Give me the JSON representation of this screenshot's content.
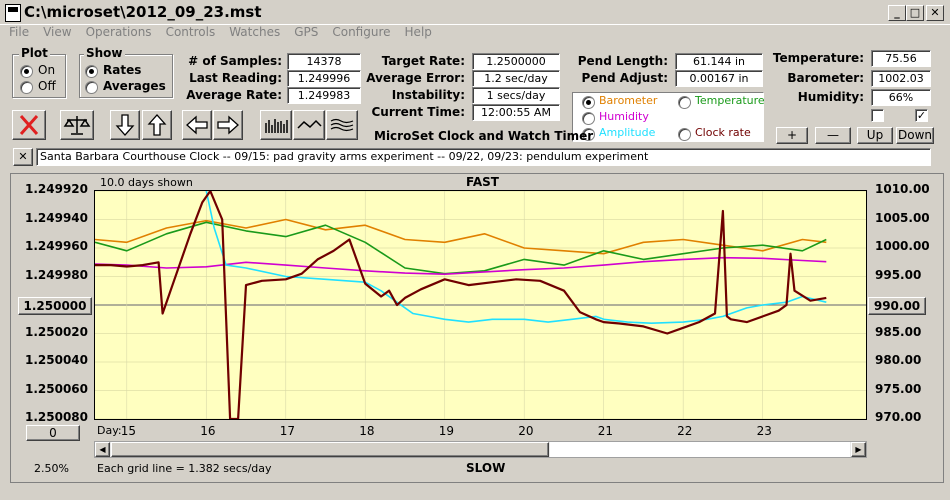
{
  "window": {
    "title": "C:\\microset\\2012_09_23.mst"
  },
  "menu": [
    "File",
    "View",
    "Operations",
    "Controls",
    "Watches",
    "GPS",
    "Configure",
    "Help"
  ],
  "plot_group": {
    "title": "Plot",
    "on": "On",
    "off": "Off",
    "selected": "On"
  },
  "show_group": {
    "title": "Show",
    "rates": "Rates",
    "averages": "Averages",
    "selected": "Rates"
  },
  "stats": {
    "samples_label": "# of Samples:",
    "samples": "14378",
    "last_label": "Last Reading:",
    "last": "1.249996",
    "avg_label": "Average Rate:",
    "avg": "1.249983",
    "target_label": "Target Rate:",
    "target": "1.2500000",
    "avgerr_label": "Average Error:",
    "avgerr": "1.2 sec/day",
    "instab_label": "Instability:",
    "instab": "1 secs/day",
    "time_label": "Current Time:",
    "time": "12:00:55 AM",
    "pendlen_label": "Pend Length:",
    "pendlen": "61.144 in",
    "pendadj_label": "Pend Adjust:",
    "pendadj": "0.00167 in",
    "temp_label": "Temperature:",
    "temp": "75.56",
    "baro_label": "Barometer:",
    "baro": "1002.03",
    "hum_label": "Humidity:",
    "hum": "66%"
  },
  "sensor_options": {
    "barometer": "Barometer",
    "temperature": "Temperature",
    "humidity": "Humidity",
    "amplitude": "Amplitude",
    "clockrate": "Clock rate",
    "selected": "Barometer"
  },
  "colors": {
    "barometer": "#e08000",
    "temperature": "#1a9a1a",
    "humidity": "#d000d0",
    "amplitude": "#20e0ff",
    "rate": "#700000"
  },
  "app_title": "MicroSet Clock and Watch Timer",
  "small_buttons": {
    "plus": "+",
    "minus": "—",
    "up": "Up",
    "down": "Down"
  },
  "close_x": "✕",
  "description": "Santa Barbara Courthouse Clock  --  09/15: pad gravity arms experiment  --  09/22, 09/23: pendulum experiment",
  "chart_header": {
    "days_shown": "10.0 days shown",
    "fast": "FAST",
    "slow": "SLOW",
    "day_label": "Day:",
    "grid_note": "Each grid line = 1.382 secs/day",
    "zoom": "2.50%"
  },
  "center_button": "1.250000",
  "right_center_button": "990.00",
  "left_bottom_button": "0",
  "chart_data": {
    "type": "line",
    "x_label": "Day:",
    "x_range": [
      14.6,
      24.3
    ],
    "x_ticks": [
      15,
      16,
      17,
      18,
      19,
      20,
      21,
      22,
      23
    ],
    "y_left_ticks": [
      "1.249920",
      "1.249940",
      "1.249960",
      "1.249980",
      "1.250000",
      "1.250020",
      "1.250040",
      "1.250060",
      "1.250080"
    ],
    "y_left_range": [
      1.24992,
      1.25008
    ],
    "y_left_inverted": true,
    "y_right_ticks": [
      "1010.00",
      "1005.00",
      "1000.00",
      "995.00",
      "990.00",
      "985.00",
      "980.00",
      "975.00",
      "970.00"
    ],
    "y_right_range": [
      970,
      1010
    ],
    "series": [
      {
        "key": "rate",
        "axis": "left",
        "x": [
          14.6,
          14.8,
          15.0,
          15.2,
          15.4,
          15.45,
          15.6,
          15.8,
          15.95,
          16.05,
          16.2,
          16.3,
          16.4,
          16.5,
          16.7,
          17.0,
          17.2,
          17.4,
          17.6,
          17.8,
          18.0,
          18.2,
          18.3,
          18.4,
          18.5,
          18.7,
          19.0,
          19.3,
          19.6,
          19.9,
          20.2,
          20.5,
          20.7,
          20.9,
          21.0,
          21.2,
          21.5,
          21.8,
          22.0,
          22.2,
          22.4,
          22.5,
          22.55,
          22.6,
          22.8,
          23.0,
          23.2,
          23.3,
          23.35,
          23.4,
          23.6,
          23.8
        ],
        "y": [
          1.249972,
          1.249972,
          1.249973,
          1.249972,
          1.24997,
          1.250006,
          1.249982,
          1.24995,
          1.249928,
          1.249915,
          1.24994,
          1.25008,
          1.25008,
          1.249986,
          1.249983,
          1.249982,
          1.249978,
          1.249968,
          1.249962,
          1.249954,
          1.249985,
          1.249994,
          1.24999,
          1.25,
          1.249995,
          1.249989,
          1.249982,
          1.249986,
          1.249984,
          1.249982,
          1.249983,
          1.24999,
          1.250005,
          1.25001,
          1.250012,
          1.250013,
          1.250015,
          1.25002,
          1.250016,
          1.250012,
          1.250006,
          1.249934,
          1.250008,
          1.25001,
          1.250012,
          1.250008,
          1.250004,
          1.25,
          1.249964,
          1.24999,
          1.249997,
          1.249995
        ]
      },
      {
        "key": "barometer",
        "axis": "right",
        "x": [
          14.6,
          15.0,
          15.5,
          16.0,
          16.5,
          17.0,
          17.5,
          18.0,
          18.5,
          19.0,
          19.5,
          20.0,
          20.5,
          21.0,
          21.5,
          22.0,
          22.5,
          23.0,
          23.5,
          23.8
        ],
        "y": [
          1001.5,
          1001.0,
          1003.5,
          1004.8,
          1003.5,
          1005.0,
          1003.2,
          1004.0,
          1001.5,
          1001.0,
          1002.5,
          1000.0,
          999.5,
          999.0,
          1001.0,
          1001.5,
          1000.5,
          999.5,
          1001.5,
          1001.0
        ]
      },
      {
        "key": "temperature",
        "axis": "right",
        "x": [
          14.6,
          15.0,
          15.5,
          16.0,
          16.5,
          17.0,
          17.5,
          18.0,
          18.5,
          19.0,
          19.5,
          20.0,
          20.5,
          21.0,
          21.5,
          22.0,
          22.5,
          23.0,
          23.5,
          23.8
        ],
        "y": [
          1001.0,
          999.5,
          1002.5,
          1004.5,
          1003.0,
          1002.0,
          1004.0,
          1001.0,
          996.5,
          995.5,
          996.0,
          998.0,
          997.0,
          999.5,
          998.0,
          999.0,
          1000.0,
          1000.5,
          999.5,
          1001.5
        ]
      },
      {
        "key": "humidity",
        "axis": "right",
        "x": [
          14.6,
          15.0,
          15.5,
          16.0,
          16.5,
          17.0,
          17.5,
          18.0,
          18.5,
          19.0,
          19.5,
          20.0,
          20.5,
          21.0,
          21.5,
          22.0,
          22.5,
          23.0,
          23.5,
          23.8
        ],
        "y": [
          997.2,
          997.0,
          996.5,
          996.7,
          997.5,
          997.0,
          996.5,
          996.0,
          995.6,
          995.4,
          995.8,
          996.2,
          996.5,
          997.0,
          997.6,
          998.0,
          998.3,
          998.2,
          997.8,
          997.6
        ]
      },
      {
        "key": "amplitude",
        "axis": "right",
        "x": [
          16.0,
          16.1,
          16.25,
          16.5,
          17.0,
          17.5,
          18.0,
          18.2,
          18.4,
          18.6,
          18.8,
          19.0,
          19.3,
          19.6,
          20.0,
          20.3,
          20.6,
          20.9,
          21.0,
          21.3,
          21.6,
          22.0,
          22.3,
          22.5,
          22.8,
          23.0,
          23.3,
          23.5,
          23.8
        ],
        "y": [
          1010.0,
          1003.5,
          997.0,
          996.5,
          995.0,
          994.5,
          994.0,
          992.5,
          990.5,
          988.5,
          988.0,
          987.5,
          987.0,
          987.5,
          987.5,
          987.0,
          987.5,
          988.0,
          987.5,
          987.0,
          986.8,
          987.0,
          987.5,
          988.0,
          989.5,
          990.0,
          990.5,
          991.5,
          990.5
        ]
      }
    ]
  }
}
